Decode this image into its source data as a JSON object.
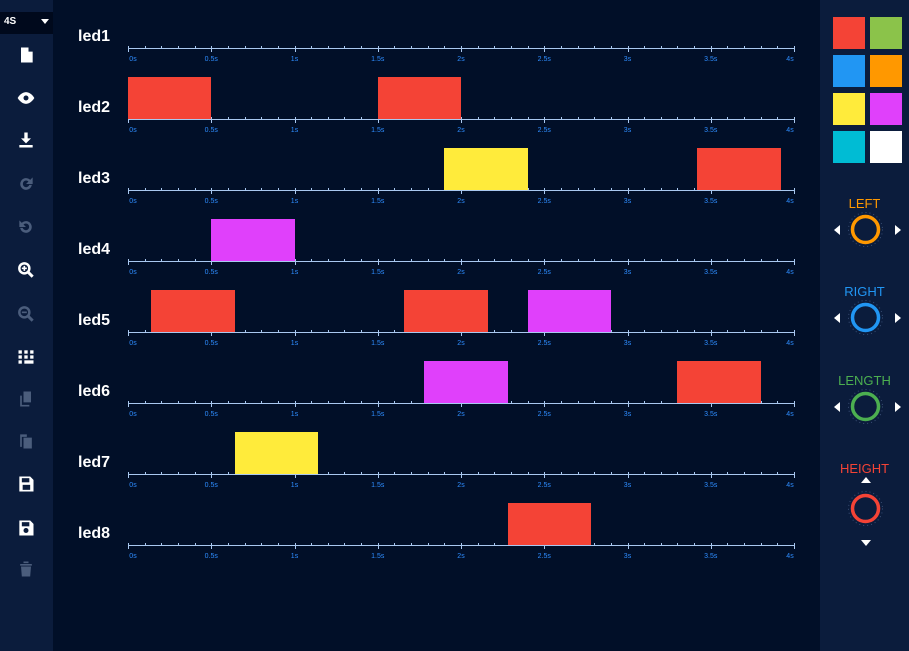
{
  "toolbar": {
    "duration_select": {
      "selected": "4S"
    },
    "icons": [
      {
        "name": "new-file-icon",
        "enabled": true
      },
      {
        "name": "preview-eye-icon",
        "enabled": true
      },
      {
        "name": "download-icon",
        "enabled": true
      },
      {
        "name": "redo-icon",
        "enabled": false
      },
      {
        "name": "undo-icon",
        "enabled": false
      },
      {
        "name": "zoom-in-icon",
        "enabled": true
      },
      {
        "name": "zoom-out-icon",
        "enabled": false
      },
      {
        "name": "grid-icon",
        "enabled": true
      },
      {
        "name": "copy-icon",
        "enabled": false
      },
      {
        "name": "paste-icon",
        "enabled": false
      },
      {
        "name": "save-icon",
        "enabled": true
      },
      {
        "name": "save-as-icon",
        "enabled": true
      },
      {
        "name": "delete-icon",
        "enabled": false
      }
    ]
  },
  "timeline": {
    "tick_labels": [
      "0s",
      "0.5s",
      "1s",
      "1.5s",
      "2s",
      "2.5s",
      "3s",
      "3.5s",
      "4s"
    ],
    "duration_seconds": 4,
    "tracks": [
      {
        "label": "led1",
        "blocks": []
      },
      {
        "label": "led2",
        "blocks": [
          {
            "start": 0.0,
            "end": 0.5,
            "color": "#f44336"
          },
          {
            "start": 1.5,
            "end": 2.0,
            "color": "#f44336"
          }
        ]
      },
      {
        "label": "led3",
        "blocks": [
          {
            "start": 1.9,
            "end": 2.4,
            "color": "#ffeb3b"
          },
          {
            "start": 3.42,
            "end": 3.92,
            "color": "#f44336"
          }
        ]
      },
      {
        "label": "led4",
        "blocks": [
          {
            "start": 0.5,
            "end": 1.0,
            "color": "#e040fb"
          }
        ]
      },
      {
        "label": "led5",
        "blocks": [
          {
            "start": 0.14,
            "end": 0.64,
            "color": "#f44336"
          },
          {
            "start": 1.66,
            "end": 2.16,
            "color": "#f44336"
          },
          {
            "start": 2.4,
            "end": 2.9,
            "color": "#e040fb"
          }
        ]
      },
      {
        "label": "led6",
        "blocks": [
          {
            "start": 1.78,
            "end": 2.28,
            "color": "#e040fb"
          },
          {
            "start": 3.3,
            "end": 3.8,
            "color": "#f44336"
          }
        ]
      },
      {
        "label": "led7",
        "blocks": [
          {
            "start": 0.64,
            "end": 1.14,
            "color": "#ffeb3b"
          }
        ]
      },
      {
        "label": "led8",
        "blocks": [
          {
            "start": 2.28,
            "end": 2.78,
            "color": "#f44336"
          }
        ]
      }
    ]
  },
  "palette": {
    "colors": [
      "#f44336",
      "#8bc34a",
      "#2196f3",
      "#ff9800",
      "#ffeb3b",
      "#e040fb",
      "#00bcd4",
      "#ffffff"
    ],
    "knobs": [
      {
        "title": "LEFT",
        "color": "#ff9800",
        "arrows": "horizontal"
      },
      {
        "title": "RIGHT",
        "color": "#2196f3",
        "arrows": "horizontal"
      },
      {
        "title": "LENGTH",
        "color": "#4caf50",
        "arrows": "horizontal"
      },
      {
        "title": "HEIGHT",
        "color": "#f44336",
        "arrows": "vertical"
      }
    ]
  }
}
